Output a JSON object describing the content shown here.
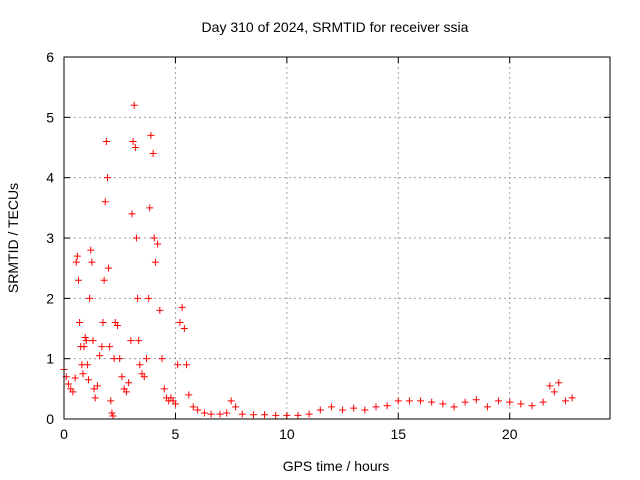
{
  "chart_data": {
    "type": "scatter",
    "title": "Day 310 of 2024, SRMTID for receiver ssia",
    "xlabel": "GPS time / hours",
    "ylabel": "SRMTID / TECUs",
    "xlim": [
      0,
      24.5
    ],
    "ylim": [
      0,
      6
    ],
    "xticks": [
      0,
      5,
      10,
      15,
      20
    ],
    "yticks": [
      0,
      1,
      2,
      3,
      4,
      5,
      6
    ],
    "xtick_labels": [
      "0",
      "5",
      "10",
      "15",
      "20"
    ],
    "ytick_labels": [
      "0",
      "1",
      "2",
      "3",
      "4",
      "5",
      "6"
    ],
    "grid": true,
    "marker": "+",
    "color": "#ff0000",
    "series": [
      {
        "name": "ssia",
        "points": [
          [
            0.0,
            0.82
          ],
          [
            0.1,
            0.7
          ],
          [
            0.2,
            0.58
          ],
          [
            0.3,
            0.5
          ],
          [
            0.4,
            0.45
          ],
          [
            0.5,
            0.68
          ],
          [
            0.55,
            2.6
          ],
          [
            0.6,
            2.7
          ],
          [
            0.65,
            2.3
          ],
          [
            0.7,
            1.6
          ],
          [
            0.75,
            1.2
          ],
          [
            0.8,
            0.9
          ],
          [
            0.85,
            0.75
          ],
          [
            0.9,
            1.2
          ],
          [
            0.95,
            1.35
          ],
          [
            1.0,
            1.3
          ],
          [
            1.05,
            0.9
          ],
          [
            1.1,
            0.65
          ],
          [
            1.15,
            2.0
          ],
          [
            1.2,
            2.8
          ],
          [
            1.25,
            2.6
          ],
          [
            1.3,
            1.3
          ],
          [
            1.35,
            0.5
          ],
          [
            1.4,
            0.35
          ],
          [
            1.5,
            0.55
          ],
          [
            1.6,
            1.05
          ],
          [
            1.7,
            1.2
          ],
          [
            1.75,
            1.6
          ],
          [
            1.8,
            2.3
          ],
          [
            1.85,
            3.6
          ],
          [
            1.9,
            4.6
          ],
          [
            1.95,
            4.0
          ],
          [
            2.0,
            2.5
          ],
          [
            2.05,
            1.2
          ],
          [
            2.1,
            0.3
          ],
          [
            2.15,
            0.1
          ],
          [
            2.2,
            0.05
          ],
          [
            2.25,
            1.0
          ],
          [
            2.3,
            1.6
          ],
          [
            2.4,
            1.55
          ],
          [
            2.5,
            1.0
          ],
          [
            2.6,
            0.7
          ],
          [
            2.7,
            0.5
          ],
          [
            2.8,
            0.45
          ],
          [
            2.9,
            0.6
          ],
          [
            3.0,
            1.3
          ],
          [
            3.05,
            3.4
          ],
          [
            3.1,
            4.6
          ],
          [
            3.15,
            5.2
          ],
          [
            3.2,
            4.5
          ],
          [
            3.25,
            3.0
          ],
          [
            3.3,
            2.0
          ],
          [
            3.35,
            1.3
          ],
          [
            3.4,
            0.9
          ],
          [
            3.5,
            0.75
          ],
          [
            3.6,
            0.7
          ],
          [
            3.7,
            1.0
          ],
          [
            3.8,
            2.0
          ],
          [
            3.85,
            3.5
          ],
          [
            3.9,
            4.7
          ],
          [
            4.0,
            4.4
          ],
          [
            4.05,
            3.0
          ],
          [
            4.1,
            2.6
          ],
          [
            4.2,
            2.9
          ],
          [
            4.3,
            1.8
          ],
          [
            4.4,
            1.0
          ],
          [
            4.5,
            0.5
          ],
          [
            4.6,
            0.35
          ],
          [
            4.7,
            0.3
          ],
          [
            4.8,
            0.35
          ],
          [
            4.9,
            0.3
          ],
          [
            5.0,
            0.25
          ],
          [
            5.1,
            0.9
          ],
          [
            5.2,
            1.6
          ],
          [
            5.3,
            1.85
          ],
          [
            5.4,
            1.5
          ],
          [
            5.5,
            0.9
          ],
          [
            5.6,
            0.4
          ],
          [
            5.8,
            0.2
          ],
          [
            6.0,
            0.15
          ],
          [
            6.3,
            0.1
          ],
          [
            6.6,
            0.08
          ],
          [
            7.0,
            0.08
          ],
          [
            7.3,
            0.1
          ],
          [
            7.5,
            0.3
          ],
          [
            7.7,
            0.2
          ],
          [
            8.0,
            0.08
          ],
          [
            8.5,
            0.07
          ],
          [
            9.0,
            0.07
          ],
          [
            9.5,
            0.06
          ],
          [
            10.0,
            0.06
          ],
          [
            10.5,
            0.06
          ],
          [
            11.0,
            0.08
          ],
          [
            11.5,
            0.15
          ],
          [
            12.0,
            0.2
          ],
          [
            12.5,
            0.15
          ],
          [
            13.0,
            0.18
          ],
          [
            13.5,
            0.15
          ],
          [
            14.0,
            0.2
          ],
          [
            14.5,
            0.22
          ],
          [
            15.0,
            0.3
          ],
          [
            15.5,
            0.3
          ],
          [
            16.0,
            0.3
          ],
          [
            16.5,
            0.28
          ],
          [
            17.0,
            0.25
          ],
          [
            17.5,
            0.2
          ],
          [
            18.0,
            0.28
          ],
          [
            18.5,
            0.32
          ],
          [
            19.0,
            0.2
          ],
          [
            19.5,
            0.3
          ],
          [
            20.0,
            0.28
          ],
          [
            20.5,
            0.25
          ],
          [
            21.0,
            0.22
          ],
          [
            21.5,
            0.28
          ],
          [
            21.8,
            0.55
          ],
          [
            22.0,
            0.45
          ],
          [
            22.2,
            0.6
          ],
          [
            22.5,
            0.3
          ],
          [
            22.8,
            0.35
          ]
        ]
      }
    ]
  }
}
